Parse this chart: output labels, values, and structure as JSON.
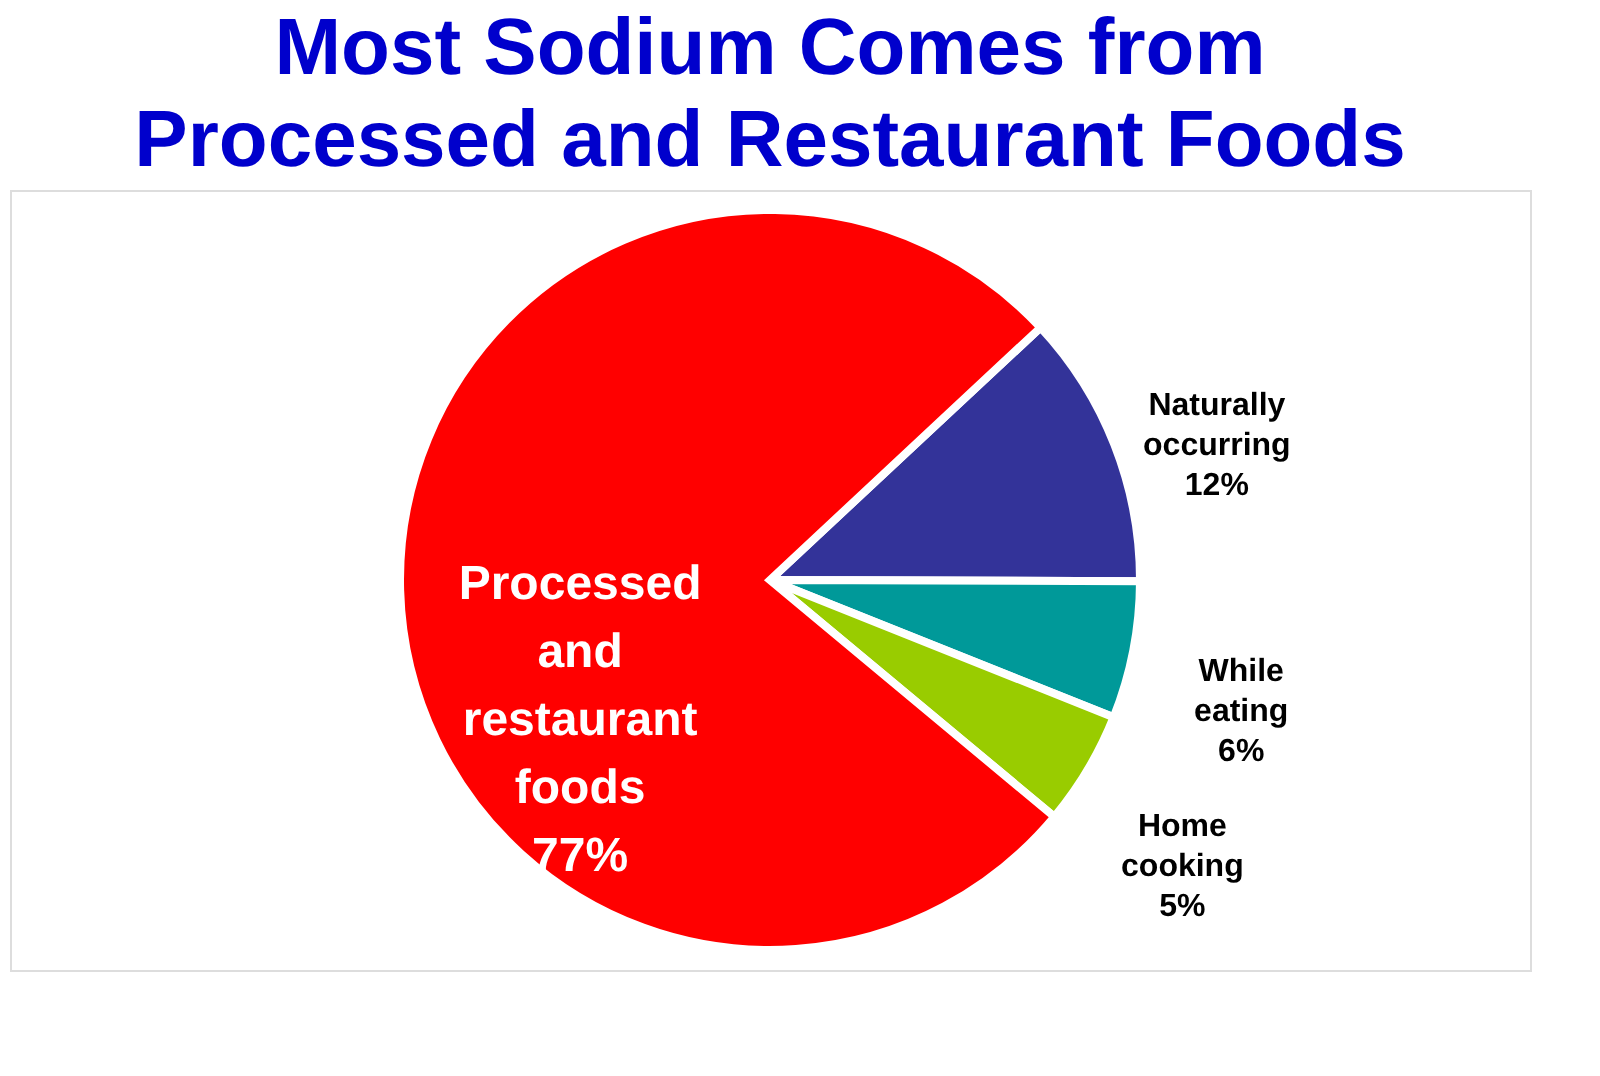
{
  "chart_data": {
    "type": "pie",
    "title": [
      "Most Sodium Comes from",
      "Processed and Restaurant Foods"
    ],
    "categories": [
      "Naturally occurring",
      "While eating",
      "Home cooking",
      "Processed and restaurant foods"
    ],
    "values": [
      12,
      6,
      5,
      77
    ],
    "colors": [
      "#333399",
      "#009999",
      "#99cc00",
      "#ff0000"
    ],
    "value_labels": [
      "12%",
      "6%",
      "5%",
      "77%"
    ],
    "legend": false
  }
}
